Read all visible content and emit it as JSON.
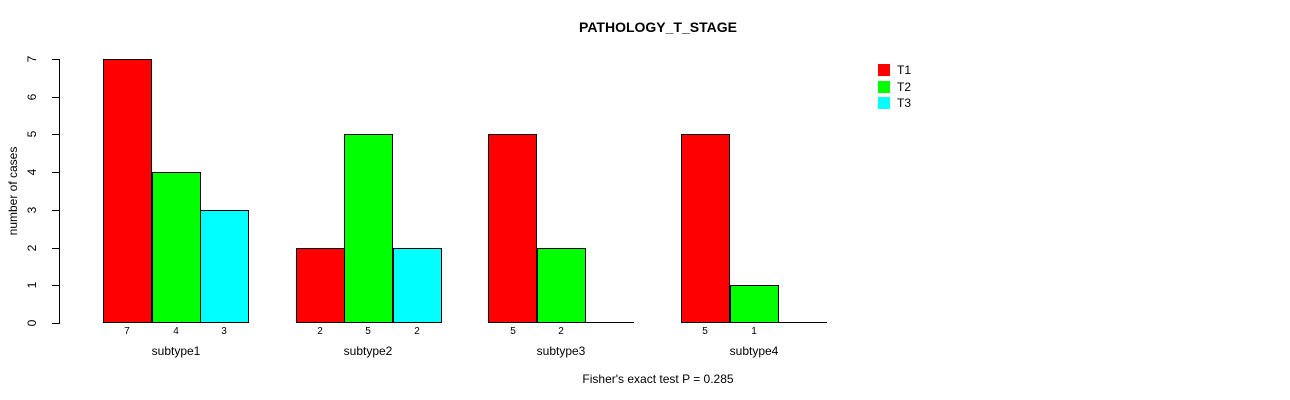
{
  "title": "PATHOLOGY_T_STAGE",
  "caption": "Fisher's exact test P = 0.285",
  "chart_data": {
    "type": "bar",
    "grouped": true,
    "title": "PATHOLOGY_T_STAGE",
    "annotation": "Fisher's exact test P = 0.285",
    "ylabel": "number of cases",
    "xlabel": "",
    "ylim": [
      0,
      7
    ],
    "yticks": [
      0,
      1,
      2,
      3,
      4,
      5,
      6,
      7
    ],
    "grid": false,
    "legend_position": "top-right",
    "bar_value_labels_shown": true,
    "categories": [
      "subtype1",
      "subtype2",
      "subtype3",
      "subtype4"
    ],
    "series": [
      {
        "name": "T1",
        "color": "#ff0000",
        "values": [
          7,
          2,
          5,
          5
        ]
      },
      {
        "name": "T2",
        "color": "#00ff00",
        "values": [
          4,
          5,
          2,
          1
        ]
      },
      {
        "name": "T3",
        "color": "#00ffff",
        "values": [
          3,
          2,
          0,
          0
        ]
      }
    ]
  }
}
